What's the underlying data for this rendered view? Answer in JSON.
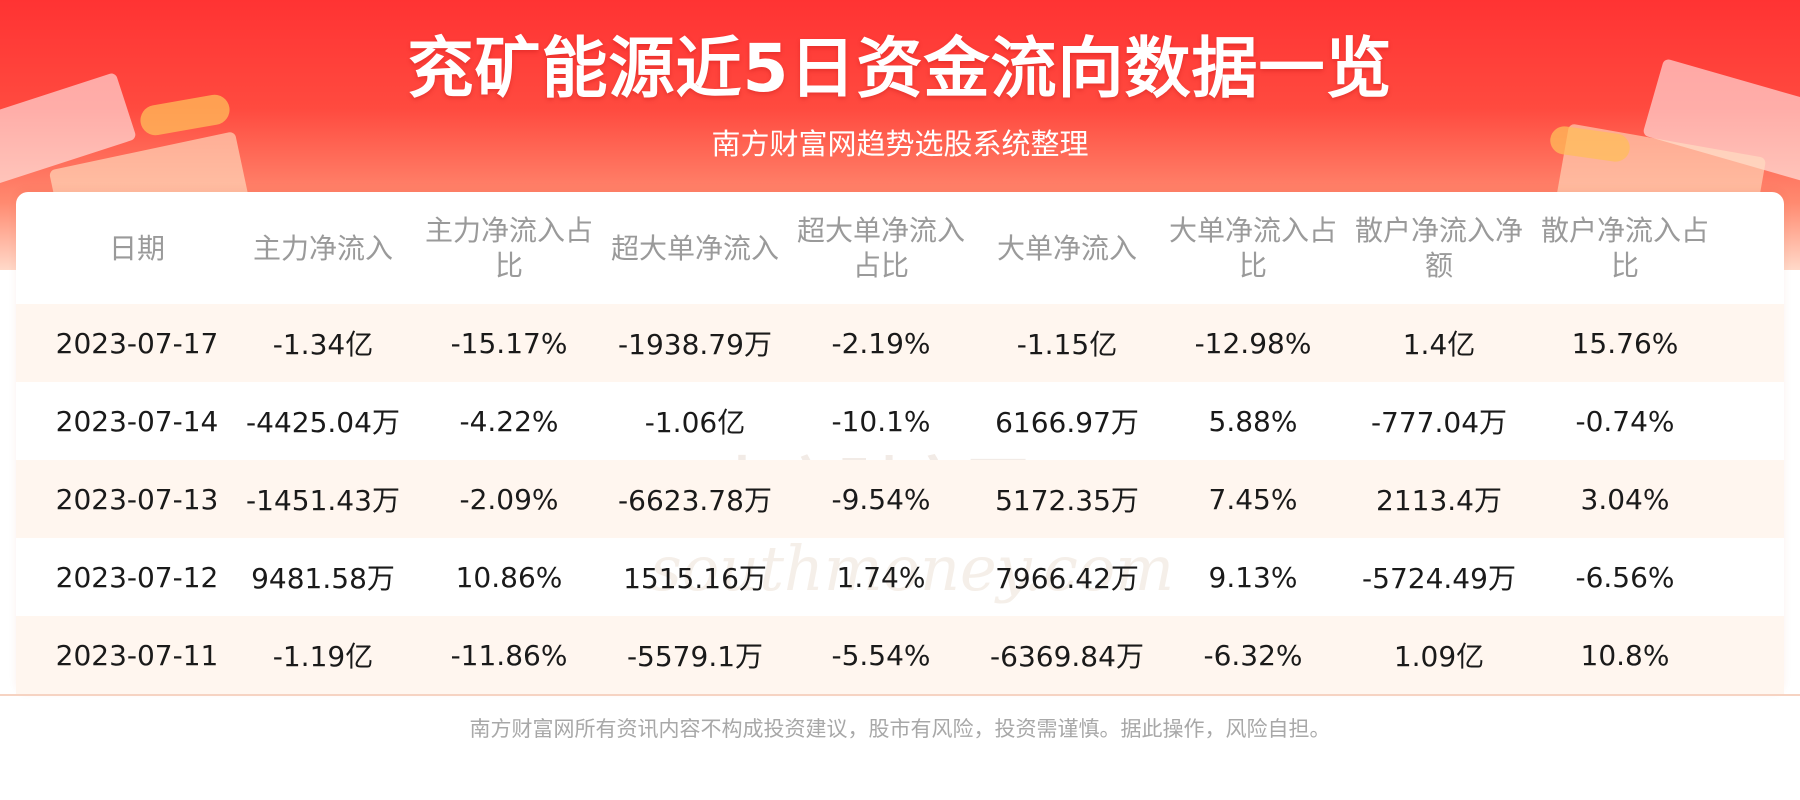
{
  "header": {
    "title": "兖矿能源近5日资金流向数据一览",
    "subtitle": "南方财富网趋势选股系统整理"
  },
  "table": {
    "columns": [
      "日期",
      "主力净流入",
      "主力净流入占比",
      "超大单净流入",
      "超大单净流入占比",
      "大单净流入",
      "大单净流入占比",
      "散户净流入净额",
      "散户净流入占比"
    ],
    "rows": [
      [
        "2023-07-17",
        "-1.34亿",
        "-15.17%",
        "-1938.79万",
        "-2.19%",
        "-1.15亿",
        "-12.98%",
        "1.4亿",
        "15.76%"
      ],
      [
        "2023-07-14",
        "-4425.04万",
        "-4.22%",
        "-1.06亿",
        "-10.1%",
        "6166.97万",
        "5.88%",
        "-777.04万",
        "-0.74%"
      ],
      [
        "2023-07-13",
        "-1451.43万",
        "-2.09%",
        "-6623.78万",
        "-9.54%",
        "5172.35万",
        "7.45%",
        "2113.4万",
        "3.04%"
      ],
      [
        "2023-07-12",
        "9481.58万",
        "10.86%",
        "1515.16万",
        "1.74%",
        "7966.42万",
        "9.13%",
        "-5724.49万",
        "-6.56%"
      ],
      [
        "2023-07-11",
        "-1.19亿",
        "-11.86%",
        "-5579.1万",
        "-5.54%",
        "-6369.84万",
        "-6.32%",
        "1.09亿",
        "10.8%"
      ]
    ]
  },
  "watermark": {
    "text_cn": "南方财富网",
    "text_en": "southmoney.com"
  },
  "footer": {
    "disclaimer": "南方财富网所有资讯内容不构成投资建议，股市有风险，投资需谨慎。据此操作，风险自担。"
  },
  "colors": {
    "banner_top": "#ff3333",
    "row_alt_bg": "#fff6ef",
    "header_text": "#9a9a9a",
    "cell_text": "#1a1a1a",
    "footer_text": "#a8a8a8"
  }
}
